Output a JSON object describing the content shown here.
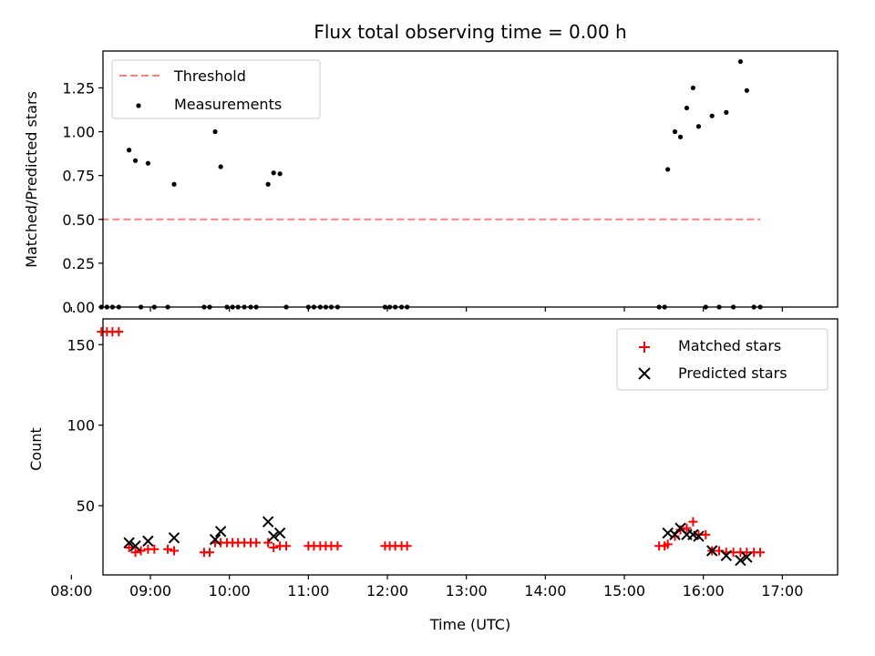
{
  "chart_data": [
    {
      "type": "scatter",
      "title": "Flux total observing time = 0.00 h",
      "xlabel": "",
      "ylabel": "Matched/Predicted stars",
      "xlim": [
        8.4,
        17.7
      ],
      "ylim": [
        0.0,
        1.46
      ],
      "x_ticks": [
        8,
        9,
        10,
        11,
        12,
        13,
        14,
        15,
        16,
        17
      ],
      "y_ticks": [
        0.0,
        0.25,
        0.5,
        0.75,
        1.0,
        1.25
      ],
      "y_tick_labels": [
        "0.00",
        "0.25",
        "0.50",
        "0.75",
        "1.00",
        "1.25"
      ],
      "legend": {
        "position": "top-left",
        "entries": [
          "Threshold",
          "Measurements"
        ]
      },
      "series": [
        {
          "name": "Threshold",
          "kind": "line",
          "style": "dashed",
          "color": "#ff7f7f",
          "points": [
            [
              8.38,
              0.5
            ],
            [
              16.72,
              0.5
            ]
          ]
        },
        {
          "name": "Measurements",
          "kind": "scatter",
          "color": "#000000",
          "points": [
            [
              8.38,
              0.0
            ],
            [
              8.45,
              0.0
            ],
            [
              8.52,
              0.0
            ],
            [
              8.6,
              0.0
            ],
            [
              8.73,
              0.895
            ],
            [
              8.81,
              0.835
            ],
            [
              8.88,
              0.0
            ],
            [
              8.97,
              0.82
            ],
            [
              9.05,
              0.0
            ],
            [
              9.22,
              0.0
            ],
            [
              9.3,
              0.7
            ],
            [
              9.68,
              0.0
            ],
            [
              9.75,
              0.0
            ],
            [
              9.82,
              1.0
            ],
            [
              9.89,
              0.8
            ],
            [
              9.97,
              0.0
            ],
            [
              10.04,
              0.0
            ],
            [
              10.11,
              0.0
            ],
            [
              10.19,
              0.0
            ],
            [
              10.27,
              0.0
            ],
            [
              10.34,
              0.0
            ],
            [
              10.49,
              0.7
            ],
            [
              10.56,
              0.765
            ],
            [
              10.64,
              0.76
            ],
            [
              10.72,
              0.0
            ],
            [
              11.0,
              0.0
            ],
            [
              11.07,
              0.0
            ],
            [
              11.15,
              0.0
            ],
            [
              11.22,
              0.0
            ],
            [
              11.29,
              0.0
            ],
            [
              11.37,
              0.0
            ],
            [
              11.97,
              0.0
            ],
            [
              12.03,
              0.0
            ],
            [
              12.1,
              0.0
            ],
            [
              12.18,
              0.0
            ],
            [
              12.25,
              0.0
            ],
            [
              15.44,
              0.0
            ],
            [
              15.51,
              0.0
            ],
            [
              15.55,
              0.785
            ],
            [
              15.64,
              1.0
            ],
            [
              15.71,
              0.97
            ],
            [
              15.79,
              1.135
            ],
            [
              15.87,
              1.25
            ],
            [
              15.94,
              1.03
            ],
            [
              16.03,
              0.0
            ],
            [
              16.11,
              1.09
            ],
            [
              16.2,
              0.0
            ],
            [
              16.29,
              1.11
            ],
            [
              16.38,
              0.0
            ],
            [
              16.47,
              1.4
            ],
            [
              16.55,
              1.235
            ],
            [
              16.64,
              0.0
            ],
            [
              16.72,
              0.0
            ]
          ]
        }
      ]
    },
    {
      "type": "scatter",
      "title": "",
      "xlabel": "Time (UTC)",
      "ylabel": "Count",
      "xlim": [
        8.4,
        17.7
      ],
      "ylim": [
        7,
        166
      ],
      "x_ticks": [
        8,
        9,
        10,
        11,
        12,
        13,
        14,
        15,
        16,
        17
      ],
      "x_tick_labels": [
        "08:00",
        "09:00",
        "10:00",
        "11:00",
        "12:00",
        "13:00",
        "14:00",
        "15:00",
        "16:00",
        "17:00"
      ],
      "y_ticks": [
        50,
        100,
        150
      ],
      "y_tick_labels": [
        "50",
        "100",
        "150"
      ],
      "legend": {
        "position": "top-right",
        "entries": [
          "Matched stars",
          "Predicted stars"
        ]
      },
      "series": [
        {
          "name": "Matched stars",
          "kind": "scatter",
          "marker": "plus",
          "color": "#ff0000",
          "points": [
            [
              8.38,
              158
            ],
            [
              8.45,
              158
            ],
            [
              8.52,
              158
            ],
            [
              8.6,
              158
            ],
            [
              8.73,
              24
            ],
            [
              8.81,
              21
            ],
            [
              8.88,
              22
            ],
            [
              8.97,
              23
            ],
            [
              9.05,
              23
            ],
            [
              9.22,
              23
            ],
            [
              9.3,
              22
            ],
            [
              9.68,
              21
            ],
            [
              9.75,
              21
            ],
            [
              9.82,
              27
            ],
            [
              9.89,
              27
            ],
            [
              9.97,
              27
            ],
            [
              10.04,
              27
            ],
            [
              10.11,
              27
            ],
            [
              10.19,
              27
            ],
            [
              10.27,
              27
            ],
            [
              10.34,
              27
            ],
            [
              10.49,
              27
            ],
            [
              10.56,
              24
            ],
            [
              10.64,
              25
            ],
            [
              10.72,
              25
            ],
            [
              11.0,
              25
            ],
            [
              11.07,
              25
            ],
            [
              11.15,
              25
            ],
            [
              11.22,
              25
            ],
            [
              11.29,
              25
            ],
            [
              11.37,
              25
            ],
            [
              11.97,
              25
            ],
            [
              12.03,
              25
            ],
            [
              12.1,
              25
            ],
            [
              12.18,
              25
            ],
            [
              12.25,
              25
            ],
            [
              15.44,
              25
            ],
            [
              15.51,
              25
            ],
            [
              15.55,
              26
            ],
            [
              15.64,
              31
            ],
            [
              15.71,
              35
            ],
            [
              15.79,
              36
            ],
            [
              15.87,
              40
            ],
            [
              15.94,
              32
            ],
            [
              16.03,
              32
            ],
            [
              16.11,
              22
            ],
            [
              16.2,
              22
            ],
            [
              16.29,
              21
            ],
            [
              16.38,
              21
            ],
            [
              16.47,
              21
            ],
            [
              16.55,
              21
            ],
            [
              16.64,
              21
            ],
            [
              16.72,
              21
            ]
          ]
        },
        {
          "name": "Predicted stars",
          "kind": "scatter",
          "marker": "x",
          "color": "#000000",
          "points": [
            [
              8.73,
              27
            ],
            [
              8.81,
              25
            ],
            [
              8.97,
              28
            ],
            [
              9.3,
              30
            ],
            [
              9.82,
              29
            ],
            [
              9.89,
              34
            ],
            [
              10.49,
              40
            ],
            [
              10.56,
              31
            ],
            [
              10.64,
              33
            ],
            [
              15.55,
              33
            ],
            [
              15.64,
              32
            ],
            [
              15.71,
              36
            ],
            [
              15.79,
              32
            ],
            [
              15.87,
              32
            ],
            [
              15.94,
              31
            ],
            [
              16.11,
              22
            ],
            [
              16.29,
              19
            ],
            [
              16.47,
              16
            ],
            [
              16.55,
              18
            ]
          ]
        }
      ]
    }
  ]
}
